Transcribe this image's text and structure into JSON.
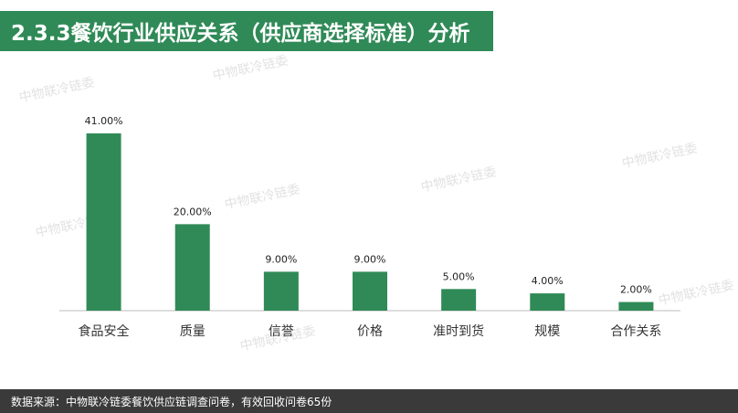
{
  "header": {
    "title": "2.3.3餐饮行业供应关系（供应商选择标准）分析"
  },
  "watermark": {
    "text": "中物联冷链委"
  },
  "footer": {
    "source": "数据来源：中物联冷链委餐饮供应链调查问卷，有效回收问卷65份"
  },
  "colors": {
    "bar": "#2f8a57",
    "banner": "#2f8a57",
    "footer": "#3a3a3a",
    "axis": "#bdbdbd"
  },
  "chart_data": {
    "type": "bar",
    "title": "",
    "xlabel": "",
    "ylabel": "",
    "categories": [
      "食品安全",
      "质量",
      "信誉",
      "价格",
      "准时到货",
      "规模",
      "合作关系"
    ],
    "values": [
      41,
      20,
      9,
      9,
      5,
      4,
      2
    ],
    "value_labels": [
      "41.00%",
      "20.00%",
      "9.00%",
      "9.00%",
      "5.00%",
      "4.00%",
      "2.00%"
    ],
    "ylim": [
      0,
      45
    ],
    "grid": false,
    "legend": "none"
  }
}
